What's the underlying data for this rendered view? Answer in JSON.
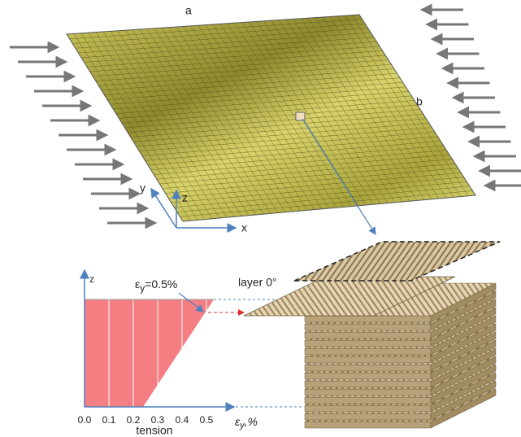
{
  "plate": {
    "label_a": "a",
    "label_b": "b",
    "axis_x": "x",
    "axis_y": "y",
    "axis_z": "z"
  },
  "strain_chart": {
    "axis_z": "z",
    "xticks": [
      {
        "value": 0,
        "label": "0.0"
      },
      0.1,
      0.2,
      0.3,
      0.4,
      0.5
    ],
    "xlim": [
      0,
      0.6
    ],
    "strain_top": 0.53,
    "strain_bottom": 0.24,
    "x_label": {
      "symbol": "ε",
      "subscript": "y",
      "unit": ",%"
    },
    "note": "tension",
    "annotation": {
      "symbol": "ε",
      "subscript": "y",
      "text": "=0.5%"
    }
  },
  "laminate": {
    "label": "layer 0°"
  }
}
